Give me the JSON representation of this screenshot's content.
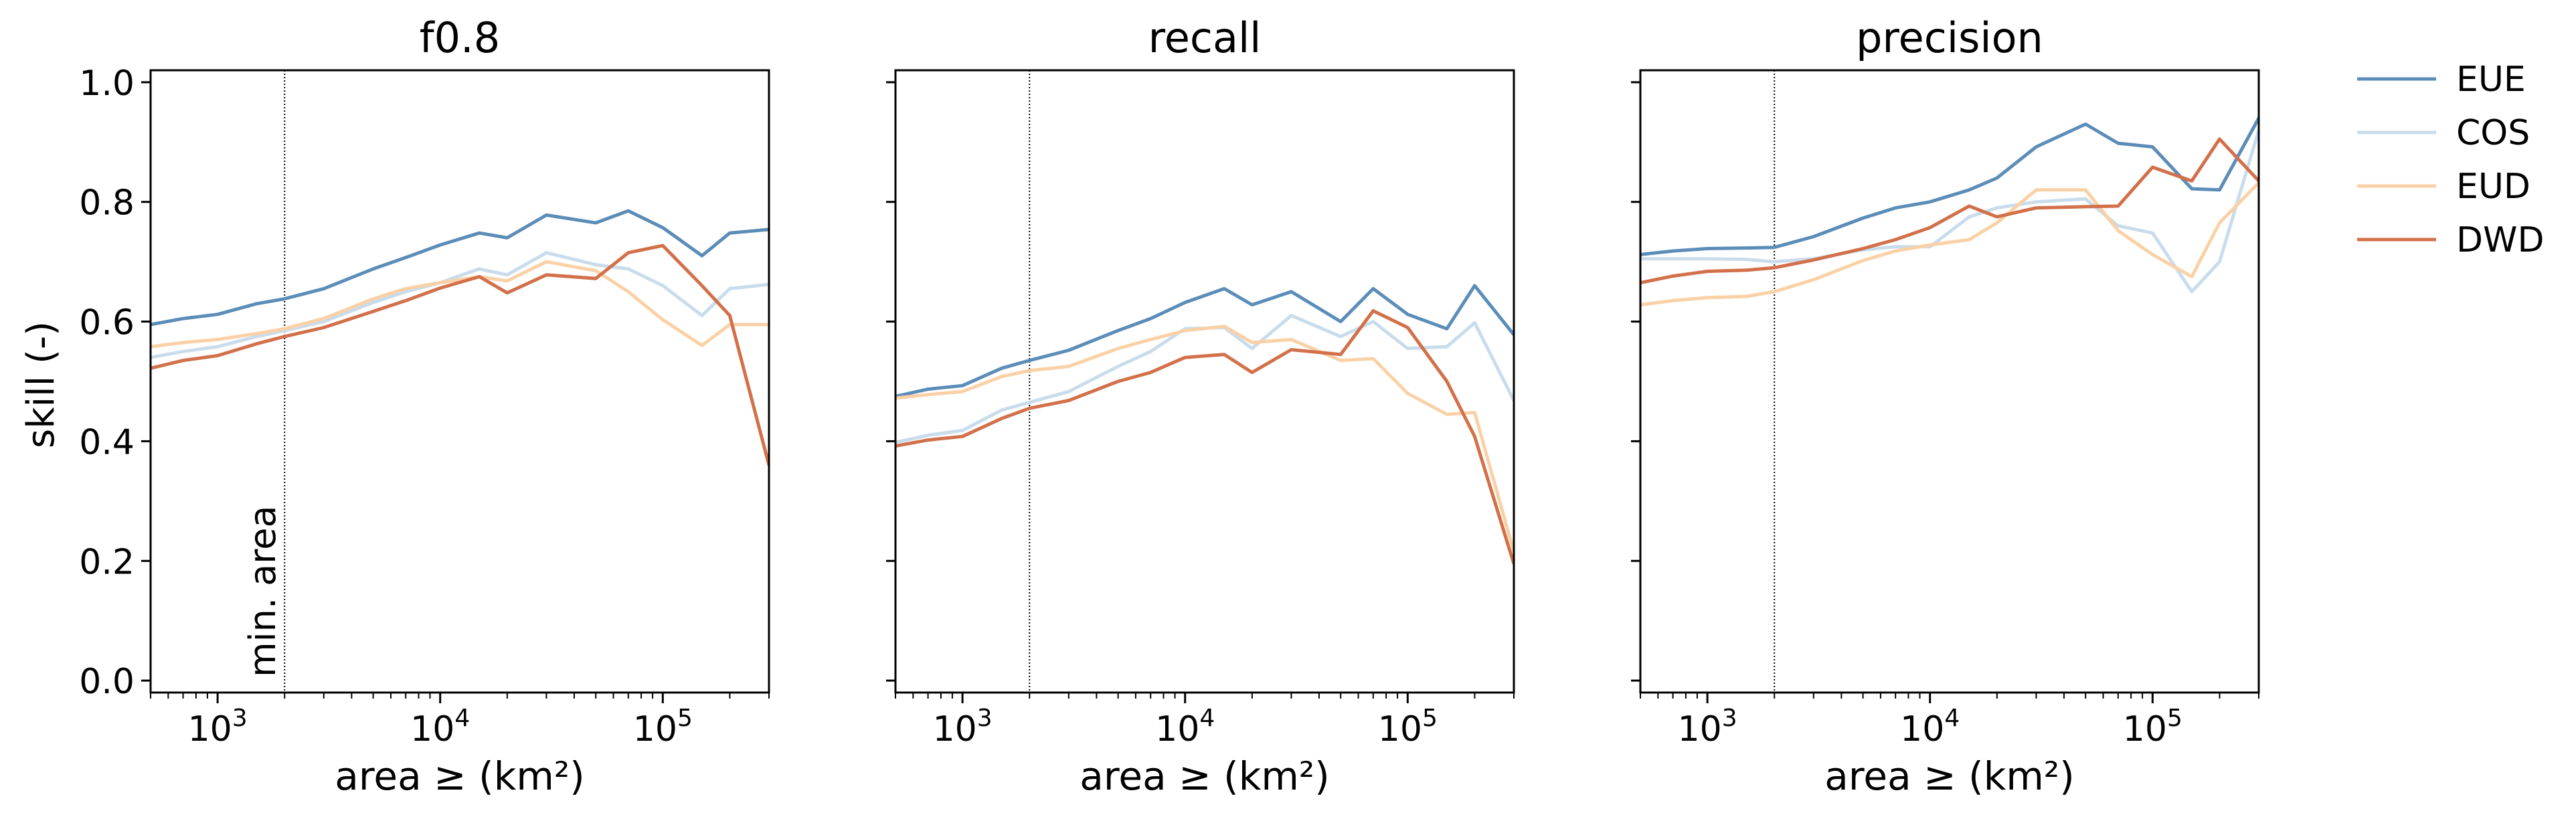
{
  "figure": {
    "ylabel": "skill (-)",
    "annotation": "min. area",
    "legend": [
      {
        "name": "EUE",
        "color": "#5b8db8"
      },
      {
        "name": "COS",
        "color": "#c9dcec"
      },
      {
        "name": "EUD",
        "color": "#fad1a6"
      },
      {
        "name": "DWD",
        "color": "#d2704a"
      }
    ]
  },
  "chart_data": [
    {
      "type": "line",
      "title": "f0.8",
      "xlabel": "area ≥ (km²)",
      "ylabel": "skill (-)",
      "xscale": "log",
      "xlim": [
        500,
        300000
      ],
      "ylim": [
        -0.02,
        1.02
      ],
      "yticks": [
        "0.0",
        "0.2",
        "0.4",
        "0.6",
        "0.8",
        "1.0"
      ],
      "xticks": [
        {
          "base": "10",
          "exp": "3"
        },
        {
          "base": "10",
          "exp": "4"
        },
        {
          "base": "10",
          "exp": "5"
        }
      ],
      "vline": 2000,
      "x": [
        500,
        700,
        1000,
        1500,
        2000,
        3000,
        5000,
        7000,
        10000,
        15000,
        20000,
        30000,
        50000,
        70000,
        100000,
        150000,
        200000,
        300000
      ],
      "series": [
        {
          "name": "EUE",
          "color": "#5b8db8",
          "values": [
            0.595,
            0.605,
            0.612,
            0.63,
            0.638,
            0.655,
            0.688,
            0.707,
            0.728,
            0.748,
            0.74,
            0.778,
            0.765,
            0.785,
            0.757,
            0.71,
            0.748,
            0.754
          ]
        },
        {
          "name": "COS",
          "color": "#c9dcec",
          "values": [
            0.54,
            0.55,
            0.558,
            0.575,
            0.585,
            0.6,
            0.632,
            0.65,
            0.665,
            0.688,
            0.678,
            0.715,
            0.695,
            0.688,
            0.66,
            0.61,
            0.655,
            0.662
          ]
        },
        {
          "name": "EUD",
          "color": "#fad1a6",
          "values": [
            0.558,
            0.565,
            0.57,
            0.58,
            0.588,
            0.605,
            0.638,
            0.655,
            0.665,
            0.675,
            0.668,
            0.7,
            0.685,
            0.65,
            0.603,
            0.56,
            0.595,
            0.595
          ]
        },
        {
          "name": "DWD",
          "color": "#d2704a",
          "values": [
            0.522,
            0.535,
            0.543,
            0.563,
            0.575,
            0.59,
            0.617,
            0.635,
            0.656,
            0.675,
            0.648,
            0.678,
            0.672,
            0.715,
            0.727,
            0.66,
            0.61,
            0.36
          ]
        }
      ]
    },
    {
      "type": "line",
      "title": "recall",
      "xlabel": "area ≥ (km²)",
      "xscale": "log",
      "xlim": [
        500,
        300000
      ],
      "ylim": [
        -0.02,
        1.02
      ],
      "xticks": [
        {
          "base": "10",
          "exp": "3"
        },
        {
          "base": "10",
          "exp": "4"
        },
        {
          "base": "10",
          "exp": "5"
        }
      ],
      "vline": 2000,
      "x": [
        500,
        700,
        1000,
        1500,
        2000,
        3000,
        5000,
        7000,
        10000,
        15000,
        20000,
        30000,
        50000,
        70000,
        100000,
        150000,
        200000,
        300000
      ],
      "series": [
        {
          "name": "EUE",
          "color": "#5b8db8",
          "values": [
            0.475,
            0.487,
            0.493,
            0.522,
            0.535,
            0.552,
            0.585,
            0.605,
            0.632,
            0.655,
            0.628,
            0.65,
            0.6,
            0.655,
            0.612,
            0.588,
            0.66,
            0.578
          ]
        },
        {
          "name": "COS",
          "color": "#c9dcec",
          "values": [
            0.398,
            0.41,
            0.418,
            0.452,
            0.465,
            0.483,
            0.525,
            0.55,
            0.588,
            0.59,
            0.555,
            0.61,
            0.575,
            0.6,
            0.555,
            0.558,
            0.598,
            0.468
          ]
        },
        {
          "name": "EUD",
          "color": "#fad1a6",
          "values": [
            0.472,
            0.478,
            0.483,
            0.508,
            0.518,
            0.525,
            0.555,
            0.57,
            0.585,
            0.592,
            0.565,
            0.57,
            0.535,
            0.538,
            0.48,
            0.445,
            0.448,
            0.215
          ]
        },
        {
          "name": "DWD",
          "color": "#d2704a",
          "values": [
            0.392,
            0.402,
            0.408,
            0.438,
            0.455,
            0.468,
            0.5,
            0.515,
            0.54,
            0.545,
            0.515,
            0.553,
            0.545,
            0.618,
            0.59,
            0.5,
            0.408,
            0.195
          ]
        }
      ]
    },
    {
      "type": "line",
      "title": "precision",
      "xlabel": "area ≥ (km²)",
      "xscale": "log",
      "xlim": [
        500,
        300000
      ],
      "ylim": [
        -0.02,
        1.02
      ],
      "xticks": [
        {
          "base": "10",
          "exp": "3"
        },
        {
          "base": "10",
          "exp": "4"
        },
        {
          "base": "10",
          "exp": "5"
        }
      ],
      "vline": 2000,
      "x": [
        500,
        700,
        1000,
        1500,
        2000,
        3000,
        5000,
        7000,
        10000,
        15000,
        20000,
        30000,
        50000,
        70000,
        100000,
        150000,
        200000,
        300000
      ],
      "series": [
        {
          "name": "EUE",
          "color": "#5b8db8",
          "values": [
            0.712,
            0.718,
            0.722,
            0.723,
            0.724,
            0.742,
            0.773,
            0.79,
            0.8,
            0.82,
            0.84,
            0.892,
            0.93,
            0.898,
            0.892,
            0.822,
            0.82,
            0.94
          ]
        },
        {
          "name": "COS",
          "color": "#c9dcec",
          "values": [
            0.705,
            0.705,
            0.705,
            0.704,
            0.7,
            0.705,
            0.72,
            0.725,
            0.725,
            0.775,
            0.79,
            0.8,
            0.805,
            0.76,
            0.748,
            0.65,
            0.7,
            0.92
          ]
        },
        {
          "name": "EUD",
          "color": "#fad1a6",
          "values": [
            0.628,
            0.635,
            0.64,
            0.642,
            0.65,
            0.67,
            0.702,
            0.718,
            0.728,
            0.737,
            0.765,
            0.82,
            0.82,
            0.752,
            0.712,
            0.675,
            0.765,
            0.832
          ]
        },
        {
          "name": "DWD",
          "color": "#d2704a",
          "values": [
            0.665,
            0.676,
            0.684,
            0.686,
            0.69,
            0.703,
            0.722,
            0.737,
            0.757,
            0.793,
            0.775,
            0.79,
            0.792,
            0.793,
            0.858,
            0.835,
            0.905,
            0.835
          ]
        }
      ]
    }
  ]
}
